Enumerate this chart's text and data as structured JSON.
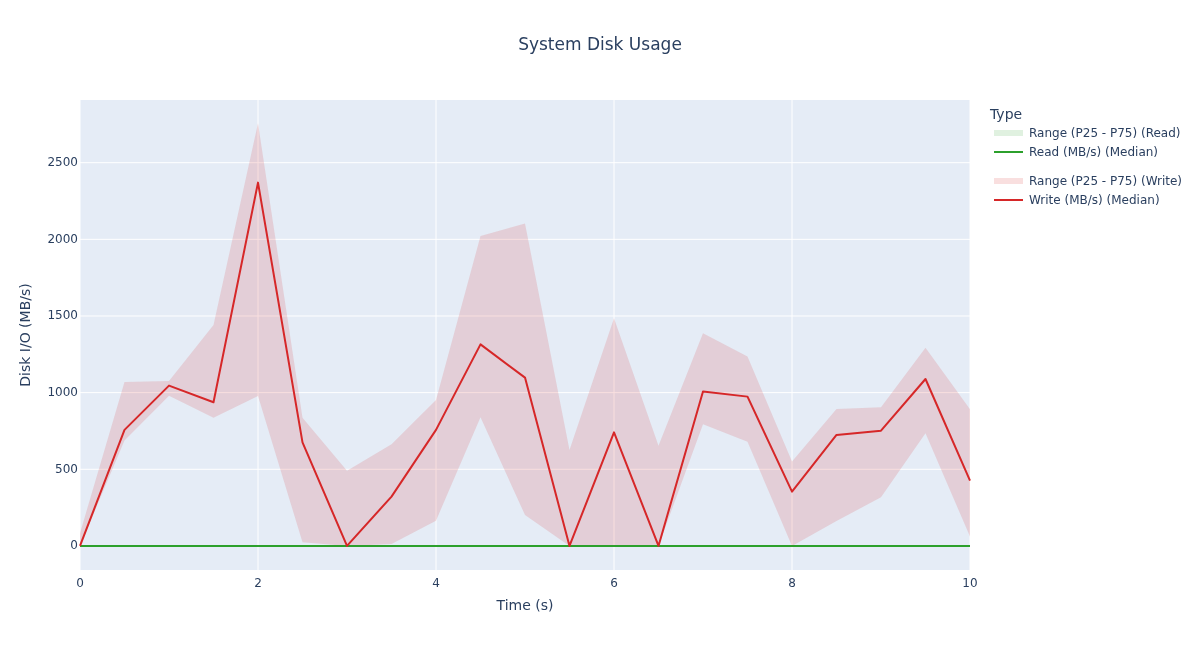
{
  "chart_data": {
    "type": "line",
    "title": "System Disk Usage",
    "xlabel": "Time (s)",
    "ylabel": "Disk I/O (MB/s)",
    "legend_title": "Type",
    "x": [
      0,
      0.5,
      1,
      1.5,
      2,
      2.5,
      3,
      3.5,
      4,
      4.5,
      5,
      5.5,
      6,
      6.5,
      7,
      7.5,
      8,
      8.5,
      9,
      9.5,
      10
    ],
    "series": [
      {
        "name": "Read (MB/s) (Median)",
        "color": "#2ca02c",
        "values": [
          0,
          0,
          0,
          0,
          0,
          0,
          0,
          0,
          0,
          0,
          0,
          0,
          0,
          0,
          0,
          0,
          0,
          0,
          0,
          0,
          0
        ]
      },
      {
        "name": "Write (MB/s) (Median)",
        "color": "#d62728",
        "values": [
          0,
          757,
          1046,
          937,
          2370,
          676,
          0,
          322,
          757,
          1315,
          1098,
          0,
          741,
          0,
          1007,
          974,
          354,
          724,
          752,
          1089,
          426
        ],
        "lower": [
          0,
          687,
          980,
          837,
          978,
          24,
          0,
          13,
          165,
          839,
          202,
          0,
          0,
          0,
          793,
          680,
          0,
          163,
          317,
          735,
          61
        ],
        "upper": [
          83,
          1070,
          1076,
          1441,
          2757,
          837,
          491,
          663,
          952,
          2022,
          2104,
          626,
          1485,
          654,
          1387,
          1235,
          550,
          893,
          904,
          1293,
          891
        ]
      }
    ],
    "annotations": [
      "Range (P25 - P75) (Read)",
      "Range (P25 - P75) (Write)"
    ],
    "xlim": [
      0,
      10
    ],
    "xticks": [
      0,
      2,
      4,
      6,
      8,
      10
    ],
    "ylim": [
      -157,
      2909
    ],
    "yticks": [
      0,
      500,
      1000,
      1500,
      2000,
      2500
    ],
    "grid": true,
    "legend": "right"
  }
}
